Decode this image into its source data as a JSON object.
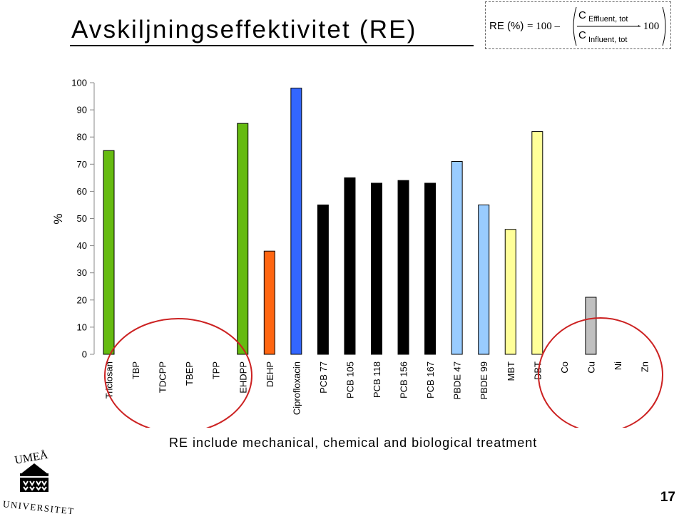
{
  "slide": {
    "title": "Avskiljningseffektivitet (RE)",
    "note": "RE include mechanical, chemical and biological treatment",
    "page_number": "17"
  },
  "formula": {
    "lhs": "RE (%)",
    "constant": "= 100 –",
    "numerator_symbol": "C",
    "numerator_subscript": "Effluent, tot",
    "denominator_symbol": "C",
    "denominator_subscript": "Influent, tot",
    "multiplier": "· 100"
  },
  "logo": {
    "text_top": "UMEÅ",
    "text_bottom": "UNIVERSITET"
  },
  "colors": {
    "green": "#66bb11",
    "orange": "#ff6611",
    "blue": "#3366ff",
    "black": "#000000",
    "light_blue": "#99ccff",
    "light_yellow": "#ffff99",
    "gray": "#c0c0c0",
    "highlight_circle": "#cc2222"
  },
  "chart_data": {
    "type": "bar",
    "ylabel": "%",
    "xlabel": "",
    "ylim": [
      0,
      100
    ],
    "yticks": [
      0,
      10,
      20,
      30,
      40,
      50,
      60,
      70,
      80,
      90,
      100
    ],
    "grid": false,
    "categories": [
      "Triclosan",
      "TBP",
      "TDCPP",
      "TBEP",
      "TPP",
      "EHDPP",
      "DEHP",
      "Ciprofloxacin",
      "PCB 77",
      "PCB 105",
      "PCB 118",
      "PCB 156",
      "PCB 167",
      "PBDE 47",
      "PBDE 99",
      "MBT",
      "DBT",
      "Co",
      "Cu",
      "Ni",
      "Zn"
    ],
    "values": [
      75,
      0,
      0,
      0,
      0,
      85,
      38,
      98,
      55,
      65,
      63,
      64,
      63,
      71,
      55,
      46,
      82,
      0,
      21,
      0,
      0
    ],
    "bar_colors": [
      "green",
      "green",
      "green",
      "green",
      "green",
      "green",
      "orange",
      "blue",
      "black",
      "black",
      "black",
      "black",
      "black",
      "light_blue",
      "light_blue",
      "light_yellow",
      "light_yellow",
      "gray",
      "gray",
      "gray",
      "gray"
    ],
    "highlight_ellipses": [
      {
        "covers": [
          "TBP",
          "TDCPP",
          "TBEP",
          "TPP",
          "EHDPP"
        ]
      },
      {
        "covers": [
          "Co",
          "Cu",
          "Ni",
          "Zn"
        ]
      }
    ]
  }
}
